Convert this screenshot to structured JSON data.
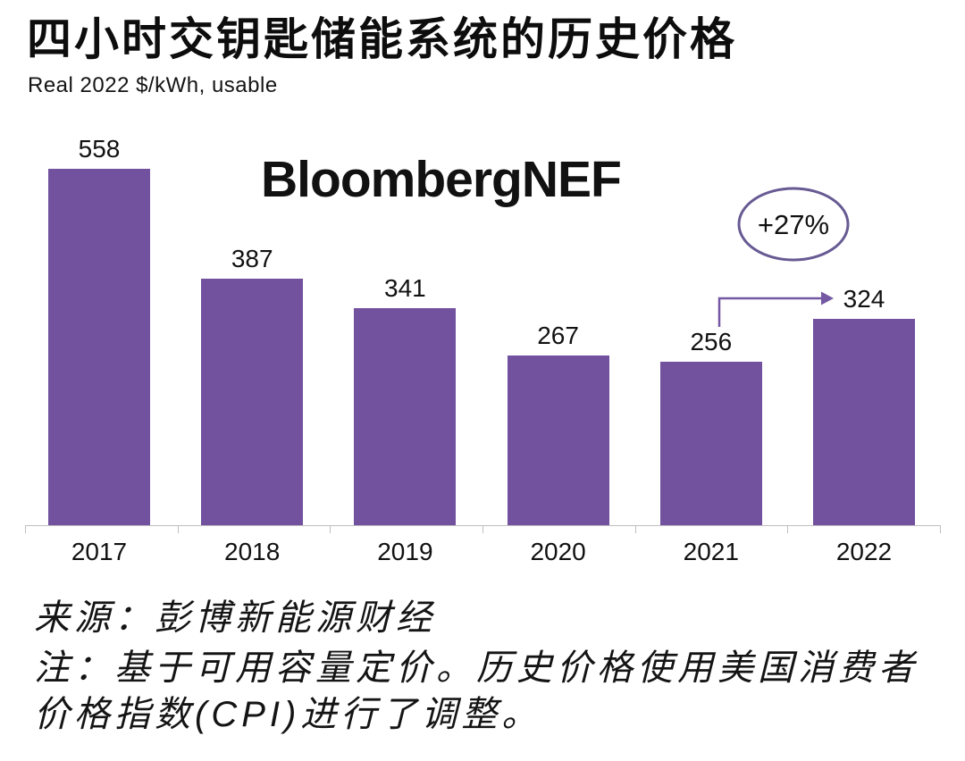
{
  "header": {
    "title": "四小时交钥匙储能系统的历史价格",
    "subtitle": "Real 2022 $/kWh, usable"
  },
  "watermark": {
    "text": "BloombergNEF"
  },
  "chart_data": {
    "type": "bar",
    "title": "四小时交钥匙储能系统的历史价格",
    "subtitle": "Real 2022 $/kWh, usable",
    "categories": [
      "2017",
      "2018",
      "2019",
      "2020",
      "2021",
      "2022"
    ],
    "values": [
      558,
      387,
      341,
      267,
      256,
      324
    ],
    "xlabel": "",
    "ylabel": "Real 2022 $/kWh, usable",
    "ylim": [
      0,
      600
    ],
    "grid": false,
    "legend": "none",
    "bar_color": "#72519F",
    "axis_color": "#BFBFBF",
    "annotation": {
      "label": "+27%",
      "from_category": "2021",
      "to_category": "2022",
      "arrow_color": "#7458A3",
      "ellipse_color": "#675A93"
    }
  },
  "annotation": {
    "label": "+27%"
  },
  "notes": {
    "source": "来源：彭博新能源财经",
    "body": "注：基于可用容量定价。历史价格使用美国消费者价格指数(CPI)进行了调整。"
  }
}
